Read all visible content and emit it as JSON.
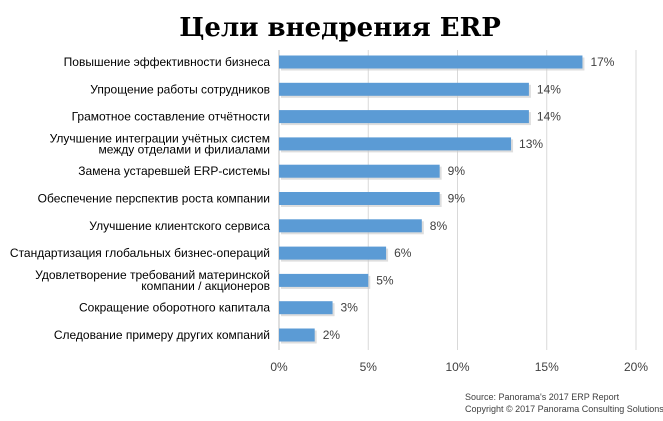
{
  "chart_data": {
    "type": "bar",
    "orientation": "horizontal",
    "title": "Цели внедрения ERP",
    "categories": [
      [
        "Повышение эффективности бизнеса"
      ],
      [
        "Упрощение работы сотрудников"
      ],
      [
        "Грамотное составление отчётности"
      ],
      [
        "Улучшение интеграции учётных систем",
        "между отделами и филиалами"
      ],
      [
        "Замена устаревшей ERP-системы"
      ],
      [
        "Обеспечение перспектив роста компании"
      ],
      [
        "Улучшение клиентского сервиса"
      ],
      [
        "Стандартизация глобальных бизнес-операций"
      ],
      [
        "Удовлетворение требований материнской",
        "компании / акционеров"
      ],
      [
        "Сокращение оборотного капитала"
      ],
      [
        "Следование примеру других компаний"
      ]
    ],
    "values": [
      17,
      14,
      14,
      13,
      9,
      9,
      8,
      6,
      5,
      3,
      2
    ],
    "value_labels": [
      "17%",
      "14%",
      "14%",
      "13%",
      "9%",
      "9%",
      "8%",
      "6%",
      "5%",
      "3%",
      "2%"
    ],
    "xlim": [
      0,
      20
    ],
    "xticks": [
      0,
      5,
      10,
      15,
      20
    ],
    "xtick_labels": [
      "0%",
      "5%",
      "10%",
      "15%",
      "20%"
    ],
    "grid": true,
    "bar_color": "#5b9bd5"
  },
  "source": [
    "Source: Panorama's 2017 ERP Report",
    "Copyright © 2017 Panorama Consulting Solutions"
  ]
}
